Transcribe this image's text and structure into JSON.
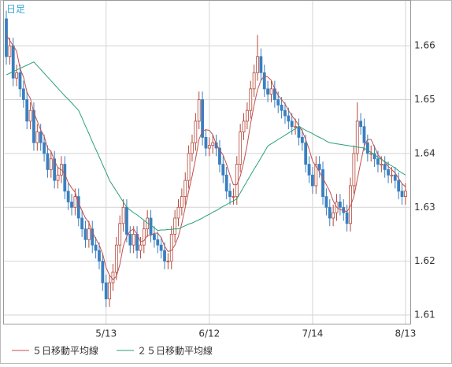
{
  "chart_data": {
    "type": "candlestick",
    "title": "日足",
    "title_color": "#3aa6d8",
    "up_color": "#b5483a",
    "down_color": "#3a7fc0",
    "grid": true,
    "ylim": [
      1.6084,
      1.6685
    ],
    "yticks": [
      1.61,
      1.62,
      1.63,
      1.64,
      1.65,
      1.66
    ],
    "categories": [
      null,
      null,
      null,
      null,
      null,
      null,
      null,
      null,
      null,
      null,
      null,
      null,
      null,
      null,
      null,
      null,
      null,
      null,
      null,
      null,
      null,
      null,
      null,
      null,
      null,
      null,
      null,
      null,
      null,
      "5/13",
      null,
      null,
      null,
      null,
      null,
      null,
      null,
      null,
      null,
      null,
      null,
      null,
      null,
      null,
      null,
      null,
      null,
      null,
      null,
      null,
      null,
      null,
      null,
      null,
      null,
      null,
      null,
      null,
      null,
      "6/12",
      null,
      null,
      null,
      null,
      null,
      null,
      null,
      null,
      null,
      null,
      null,
      null,
      null,
      null,
      null,
      null,
      null,
      null,
      null,
      null,
      null,
      null,
      null,
      null,
      null,
      null,
      null,
      null,
      null,
      "7/14",
      null,
      null,
      null,
      null,
      null,
      null,
      null,
      null,
      null,
      null,
      null,
      null,
      null,
      null,
      null,
      null,
      null,
      null,
      null,
      null,
      null,
      null,
      null,
      null,
      null,
      null,
      "8/13"
    ],
    "open": [
      1.665,
      1.658,
      1.66,
      1.654,
      1.655,
      1.652,
      1.65,
      1.646,
      1.648,
      1.642,
      1.644,
      1.642,
      1.64,
      1.637,
      1.639,
      1.635,
      1.636,
      1.638,
      1.633,
      1.631,
      1.63,
      1.632,
      1.628,
      1.626,
      1.624,
      1.626,
      1.623,
      1.622,
      1.62,
      1.616,
      1.613,
      1.616,
      1.618,
      1.623,
      1.627,
      1.63,
      1.625,
      1.623,
      1.625,
      1.622,
      1.623,
      1.626,
      1.628,
      1.625,
      1.624,
      1.623,
      1.622,
      1.62,
      1.62,
      1.625,
      1.628,
      1.63,
      1.632,
      1.635,
      1.64,
      1.642,
      1.646,
      1.65,
      1.643,
      1.641,
      1.6415,
      1.642,
      1.641,
      1.638,
      1.636,
      1.633,
      1.632,
      1.632,
      1.638,
      1.644,
      1.646,
      1.648,
      1.652,
      1.655,
      1.658,
      1.655,
      1.652,
      1.651,
      1.652,
      1.65,
      1.649,
      1.648,
      1.647,
      1.646,
      1.645,
      1.645,
      1.643,
      1.642,
      1.638,
      1.636,
      1.634,
      1.638,
      1.637,
      1.632,
      1.63,
      1.628,
      1.629,
      1.631,
      1.63,
      1.629,
      1.627,
      1.634,
      1.64,
      1.646,
      1.645,
      1.642,
      1.64,
      1.64,
      1.639,
      1.638,
      1.638,
      1.637,
      1.636,
      1.636,
      1.635,
      1.633,
      1.632
    ],
    "high": [
      1.6665,
      1.6615,
      1.6615,
      1.6565,
      1.6565,
      1.6535,
      1.6515,
      1.6495,
      1.6495,
      1.6455,
      1.6455,
      1.6435,
      1.6415,
      1.6405,
      1.6405,
      1.6375,
      1.6395,
      1.6395,
      1.6345,
      1.6325,
      1.6335,
      1.6335,
      1.6295,
      1.6275,
      1.6275,
      1.6275,
      1.6245,
      1.6235,
      1.6215,
      1.6175,
      1.6175,
      1.6195,
      1.6245,
      1.6285,
      1.6315,
      1.6315,
      1.6265,
      1.6265,
      1.6265,
      1.6245,
      1.6275,
      1.6295,
      1.6295,
      1.6265,
      1.6255,
      1.6245,
      1.6235,
      1.6215,
      1.6265,
      1.6295,
      1.6315,
      1.6335,
      1.6365,
      1.6415,
      1.6435,
      1.6475,
      1.6515,
      1.6515,
      1.6445,
      1.643,
      1.6435,
      1.6435,
      1.6425,
      1.6395,
      1.6375,
      1.6345,
      1.6335,
      1.6395,
      1.6455,
      1.6475,
      1.6495,
      1.6535,
      1.6565,
      1.662,
      1.6595,
      1.6565,
      1.6535,
      1.6535,
      1.6535,
      1.6515,
      1.6505,
      1.6495,
      1.6485,
      1.6475,
      1.6465,
      1.6465,
      1.6445,
      1.6435,
      1.6395,
      1.6375,
      1.6395,
      1.6395,
      1.6385,
      1.6335,
      1.6315,
      1.6305,
      1.6325,
      1.6325,
      1.6315,
      1.6305,
      1.6355,
      1.6415,
      1.6495,
      1.6475,
      1.6465,
      1.6435,
      1.6415,
      1.6415,
      1.6405,
      1.6395,
      1.6395,
      1.6385,
      1.6375,
      1.6375,
      1.6365,
      1.6345,
      1.6345
    ],
    "low": [
      1.6565,
      1.6565,
      1.6525,
      1.6525,
      1.6505,
      1.6485,
      1.6445,
      1.6445,
      1.6405,
      1.6405,
      1.6405,
      1.6385,
      1.6355,
      1.6355,
      1.6335,
      1.6335,
      1.6345,
      1.6315,
      1.6295,
      1.6285,
      1.6285,
      1.6265,
      1.6245,
      1.6225,
      1.6225,
      1.6215,
      1.6205,
      1.6185,
      1.6145,
      1.6115,
      1.6115,
      1.6145,
      1.6165,
      1.6215,
      1.6255,
      1.6235,
      1.6215,
      1.6215,
      1.6205,
      1.6205,
      1.6215,
      1.6245,
      1.6235,
      1.6225,
      1.6215,
      1.6205,
      1.6185,
      1.6185,
      1.6185,
      1.6235,
      1.6265,
      1.6285,
      1.6305,
      1.6335,
      1.6385,
      1.6405,
      1.6445,
      1.6415,
      1.6395,
      1.6395,
      1.64,
      1.6395,
      1.6365,
      1.6345,
      1.6315,
      1.6305,
      1.6305,
      1.6305,
      1.6365,
      1.6425,
      1.6445,
      1.6465,
      1.6505,
      1.6535,
      1.6535,
      1.6505,
      1.6495,
      1.6495,
      1.6485,
      1.6475,
      1.6465,
      1.6455,
      1.6445,
      1.6435,
      1.6435,
      1.6415,
      1.6405,
      1.6365,
      1.6345,
      1.6325,
      1.6325,
      1.6355,
      1.6305,
      1.6285,
      1.6265,
      1.6265,
      1.6275,
      1.6285,
      1.6275,
      1.6255,
      1.6255,
      1.6325,
      1.6385,
      1.6435,
      1.6405,
      1.6385,
      1.6385,
      1.6375,
      1.6365,
      1.6365,
      1.6355,
      1.6345,
      1.6345,
      1.6335,
      1.6315,
      1.6305,
      1.6305
    ],
    "close": [
      1.658,
      1.66,
      1.654,
      1.655,
      1.652,
      1.65,
      1.646,
      1.648,
      1.642,
      1.644,
      1.642,
      1.64,
      1.637,
      1.639,
      1.635,
      1.636,
      1.638,
      1.633,
      1.631,
      1.63,
      1.632,
      1.628,
      1.626,
      1.624,
      1.626,
      1.623,
      1.622,
      1.62,
      1.616,
      1.613,
      1.616,
      1.618,
      1.623,
      1.627,
      1.63,
      1.625,
      1.623,
      1.625,
      1.622,
      1.623,
      1.626,
      1.628,
      1.625,
      1.624,
      1.623,
      1.622,
      1.62,
      1.62,
      1.625,
      1.628,
      1.63,
      1.632,
      1.635,
      1.64,
      1.642,
      1.646,
      1.65,
      1.643,
      1.641,
      1.6415,
      1.642,
      1.641,
      1.638,
      1.636,
      1.633,
      1.632,
      1.632,
      1.638,
      1.644,
      1.646,
      1.648,
      1.652,
      1.655,
      1.658,
      1.655,
      1.652,
      1.651,
      1.652,
      1.65,
      1.649,
      1.648,
      1.647,
      1.646,
      1.645,
      1.645,
      1.643,
      1.642,
      1.638,
      1.636,
      1.634,
      1.638,
      1.637,
      1.632,
      1.63,
      1.628,
      1.629,
      1.631,
      1.63,
      1.629,
      1.627,
      1.634,
      1.64,
      1.646,
      1.645,
      1.642,
      1.64,
      1.64,
      1.639,
      1.638,
      1.638,
      1.637,
      1.636,
      1.636,
      1.635,
      1.633,
      1.632,
      1.633
    ],
    "series": [
      {
        "name": "５日移動平均線",
        "color": "#c0504d",
        "values": [
          1.662,
          1.661,
          1.66,
          1.659,
          1.6558,
          1.6542,
          1.6514,
          1.6502,
          1.6476,
          1.646,
          1.6444,
          1.6432,
          1.641,
          1.6404,
          1.6386,
          1.6374,
          1.637,
          1.6362,
          1.6346,
          1.6336,
          1.6328,
          1.6308,
          1.6294,
          1.628,
          1.6272,
          1.6254,
          1.6242,
          1.623,
          1.6214,
          1.6188,
          1.6174,
          1.6166,
          1.6172,
          1.6194,
          1.6228,
          1.6246,
          1.6256,
          1.626,
          1.625,
          1.6236,
          1.6238,
          1.6248,
          1.6248,
          1.6252,
          1.6252,
          1.6244,
          1.6228,
          1.6218,
          1.622,
          1.623,
          1.6246,
          1.627,
          1.63,
          1.633,
          1.6358,
          1.639,
          1.6426,
          1.6442,
          1.6444,
          1.6443,
          1.6435,
          1.6417,
          1.6407,
          1.6397,
          1.638,
          1.636,
          1.6342,
          1.6342,
          1.6358,
          1.6384,
          1.6416,
          1.6456,
          1.649,
          1.6518,
          1.6536,
          1.6544,
          1.6542,
          1.6536,
          1.652,
          1.6508,
          1.65,
          1.6492,
          1.648,
          1.647,
          1.6462,
          1.6452,
          1.6442,
          1.6426,
          1.6408,
          1.6386,
          1.6376,
          1.6366,
          1.6354,
          1.6342,
          1.633,
          1.6312,
          1.63,
          1.6296,
          1.6294,
          1.6292,
          1.6302,
          1.632,
          1.6352,
          1.6384,
          1.6414,
          1.6426,
          1.6426,
          1.6412,
          1.6398,
          1.639,
          1.6384,
          1.6376,
          1.637,
          1.6364,
          1.6354,
          1.6344,
          1.6338
        ]
      },
      {
        "name": "２５日移動平均線",
        "color": "#2aa07a",
        "values": [
          1.6546,
          1.6549,
          1.6552,
          1.6555,
          1.6558,
          1.6561,
          1.6564,
          1.6567,
          1.657,
          1.6563,
          1.6556,
          1.6549,
          1.6542,
          1.6535,
          1.6528,
          1.6521,
          1.6514,
          1.6507,
          1.6501,
          1.6494,
          1.6487,
          1.648,
          1.6466,
          1.6451,
          1.6437,
          1.6422,
          1.6408,
          1.6394,
          1.6379,
          1.6365,
          1.635,
          1.634,
          1.633,
          1.632,
          1.631,
          1.63,
          1.6295,
          1.629,
          1.6286,
          1.6281,
          1.6276,
          1.6271,
          1.6267,
          1.6262,
          1.6257,
          1.6258,
          1.6258,
          1.6259,
          1.6259,
          1.626,
          1.626,
          1.6263,
          1.6266,
          1.6269,
          1.6271,
          1.6274,
          1.6277,
          1.628,
          1.6284,
          1.6287,
          1.6291,
          1.6294,
          1.6298,
          1.6302,
          1.6305,
          1.6309,
          1.6312,
          1.6316,
          1.6327,
          1.6338,
          1.6349,
          1.636,
          1.6371,
          1.6381,
          1.6392,
          1.6403,
          1.6414,
          1.6418,
          1.6422,
          1.6426,
          1.643,
          1.6434,
          1.6438,
          1.6442,
          1.6446,
          1.645,
          1.6447,
          1.6443,
          1.644,
          1.6437,
          1.6433,
          1.643,
          1.6427,
          1.6423,
          1.642,
          1.6419,
          1.6418,
          1.6417,
          1.6416,
          1.6415,
          1.6414,
          1.6413,
          1.6412,
          1.6411,
          1.641,
          1.6406,
          1.6402,
          1.6398,
          1.6393,
          1.6389,
          1.6385,
          1.6381,
          1.6377,
          1.6373,
          1.6368,
          1.6364,
          1.636
        ]
      }
    ]
  }
}
